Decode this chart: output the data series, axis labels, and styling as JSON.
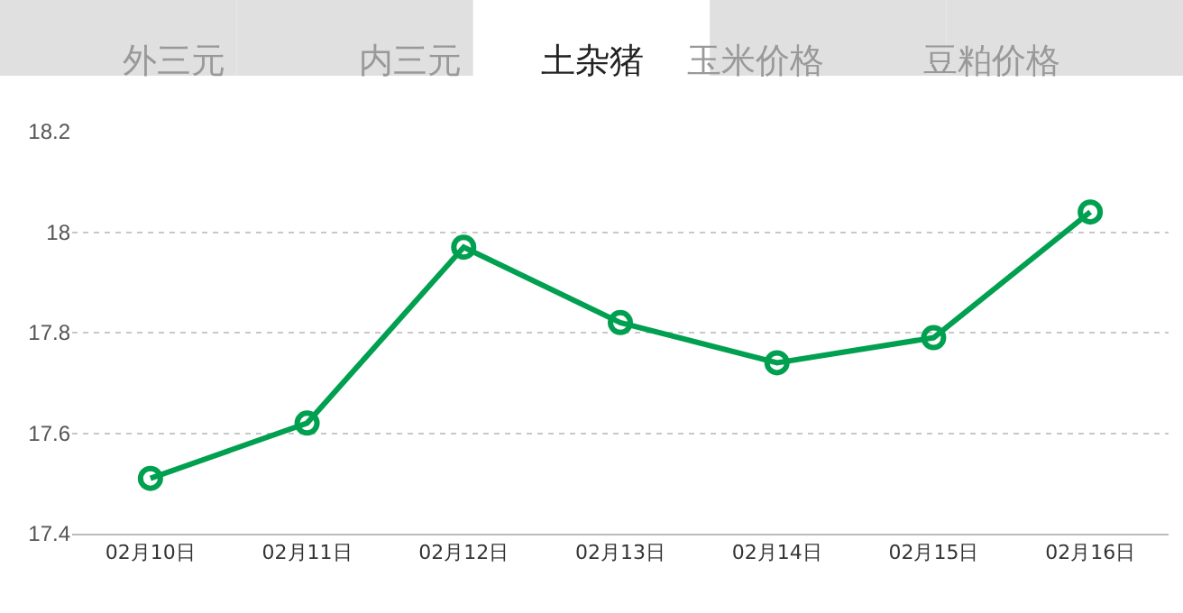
{
  "chart_data": {
    "type": "line",
    "title": "土杂猪",
    "annotations": [
      "外三元",
      "内三元",
      "玉米价格",
      "豆粕价格"
    ],
    "categories": [
      "02月10日",
      "02月11日",
      "02月12日",
      "02月13日",
      "02月14日",
      "02月15日",
      "02月16日"
    ],
    "series": [
      {
        "color": "#00a050",
        "values": [
          17.51,
          17.62,
          17.97,
          17.82,
          17.74,
          17.79,
          18.04
        ]
      }
    ],
    "ylim": [
      17.4,
      18.2
    ],
    "yticks": [
      17.4,
      17.6,
      17.8,
      {
        "value": 18,
        "label": "18"
      },
      18.2
    ],
    "grid": "y",
    "legend": false,
    "marker": "circle",
    "line_style": "solid"
  }
}
